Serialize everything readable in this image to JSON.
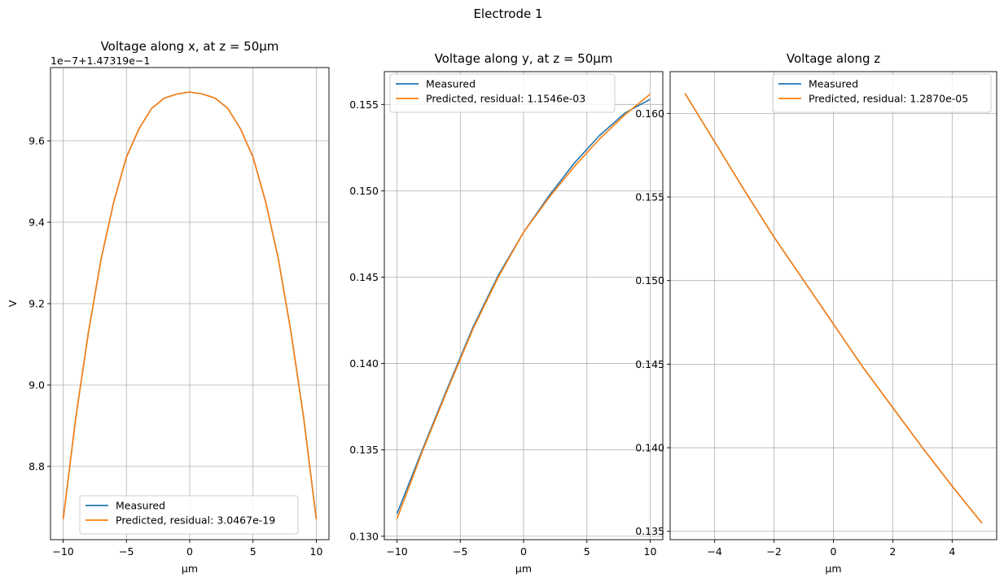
{
  "figure": {
    "suptitle": "Electrode 1"
  },
  "chart_data": [
    {
      "type": "line",
      "title": "Voltage along x, at z = 50µm",
      "xlabel": "µm",
      "ylabel": "V",
      "offset_label": "1e−7+1.47319e−1",
      "xlim": [
        -11,
        11
      ],
      "ylim": [
        8.62,
        9.78
      ],
      "xticks": [
        -10,
        -5,
        0,
        5,
        10
      ],
      "xtick_labels": [
        "−10",
        "−5",
        "0",
        "5",
        "10"
      ],
      "yticks": [
        8.8,
        9.0,
        9.2,
        9.4,
        9.6
      ],
      "ytick_labels": [
        "8.8",
        "9.0",
        "9.2",
        "9.4",
        "9.6"
      ],
      "grid": true,
      "legend_position": "lower-center",
      "series": [
        {
          "name": "Measured",
          "color": "#1f77b4",
          "x": [
            -10,
            -9,
            -8,
            -7,
            -6,
            -5,
            -4,
            -3,
            -2,
            -1,
            0,
            1,
            2,
            3,
            4,
            5,
            6,
            7,
            8,
            9,
            10
          ],
          "y": [
            8.67,
            8.92,
            9.13,
            9.31,
            9.45,
            9.56,
            9.63,
            9.68,
            9.705,
            9.715,
            9.72,
            9.715,
            9.705,
            9.68,
            9.63,
            9.56,
            9.45,
            9.31,
            9.13,
            8.92,
            8.67
          ]
        },
        {
          "name": "Predicted, residual: 3.0467e-19",
          "color": "#ff7f0e",
          "x": [
            -10,
            -9,
            -8,
            -7,
            -6,
            -5,
            -4,
            -3,
            -2,
            -1,
            0,
            1,
            2,
            3,
            4,
            5,
            6,
            7,
            8,
            9,
            10
          ],
          "y": [
            8.67,
            8.92,
            9.13,
            9.31,
            9.45,
            9.56,
            9.63,
            9.68,
            9.705,
            9.715,
            9.72,
            9.715,
            9.705,
            9.68,
            9.63,
            9.56,
            9.45,
            9.31,
            9.13,
            8.92,
            8.67
          ]
        }
      ]
    },
    {
      "type": "line",
      "title": "Voltage along y, at z = 50µm",
      "xlabel": "µm",
      "ylabel": "",
      "offset_label": "",
      "xlim": [
        -11,
        11
      ],
      "ylim": [
        0.1298,
        0.1569
      ],
      "xticks": [
        -10,
        -5,
        0,
        5,
        10
      ],
      "xtick_labels": [
        "−10",
        "−5",
        "0",
        "5",
        "10"
      ],
      "yticks": [
        0.13,
        0.135,
        0.14,
        0.145,
        0.15,
        0.155
      ],
      "ytick_labels": [
        "0.130",
        "0.135",
        "0.140",
        "0.145",
        "0.150",
        "0.155"
      ],
      "grid": true,
      "legend_position": "upper-left",
      "series": [
        {
          "name": "Measured",
          "color": "#1f77b4",
          "x": [
            -10,
            -8,
            -6,
            -4,
            -2,
            0,
            2,
            4,
            6,
            8,
            10
          ],
          "y": [
            0.1313,
            0.135,
            0.1386,
            0.1421,
            0.1451,
            0.1476,
            0.1497,
            0.1516,
            0.1532,
            0.1545,
            0.1553
          ]
        },
        {
          "name": "Predicted, residual: 1.1546e-03",
          "color": "#ff7f0e",
          "x": [
            -10,
            -8,
            -6,
            -4,
            -2,
            0,
            2,
            4,
            6,
            8,
            10
          ],
          "y": [
            0.131,
            0.1349,
            0.1385,
            0.142,
            0.145,
            0.1476,
            0.1496,
            0.1514,
            0.153,
            0.1544,
            0.1556
          ]
        }
      ]
    },
    {
      "type": "line",
      "title": "Voltage along z",
      "xlabel": "µm",
      "ylabel": "",
      "offset_label": "",
      "xlim": [
        -5.5,
        5.5
      ],
      "ylim": [
        0.1345,
        0.1625
      ],
      "xticks": [
        -4,
        -2,
        0,
        2,
        4
      ],
      "xtick_labels": [
        "−4",
        "−2",
        "0",
        "2",
        "4"
      ],
      "yticks": [
        0.135,
        0.14,
        0.145,
        0.15,
        0.155,
        0.16
      ],
      "ytick_labels": [
        "0.135",
        "0.140",
        "0.145",
        "0.150",
        "0.155",
        "0.160"
      ],
      "grid": true,
      "legend_position": "upper-right",
      "series": [
        {
          "name": "Measured",
          "color": "#1f77b4",
          "x": [
            -5,
            -4,
            -3,
            -2,
            -1,
            0,
            1,
            2,
            3,
            4,
            5
          ],
          "y": [
            0.1612,
            0.1583,
            0.1554,
            0.1526,
            0.15,
            0.1474,
            0.1448,
            0.1424,
            0.14,
            0.1377,
            0.1355
          ]
        },
        {
          "name": "Predicted, residual: 1.2870e-05",
          "color": "#ff7f0e",
          "x": [
            -5,
            -4,
            -3,
            -2,
            -1,
            0,
            1,
            2,
            3,
            4,
            5
          ],
          "y": [
            0.1612,
            0.1583,
            0.1554,
            0.1526,
            0.15,
            0.1474,
            0.1448,
            0.1424,
            0.14,
            0.1377,
            0.1355
          ]
        }
      ]
    }
  ]
}
